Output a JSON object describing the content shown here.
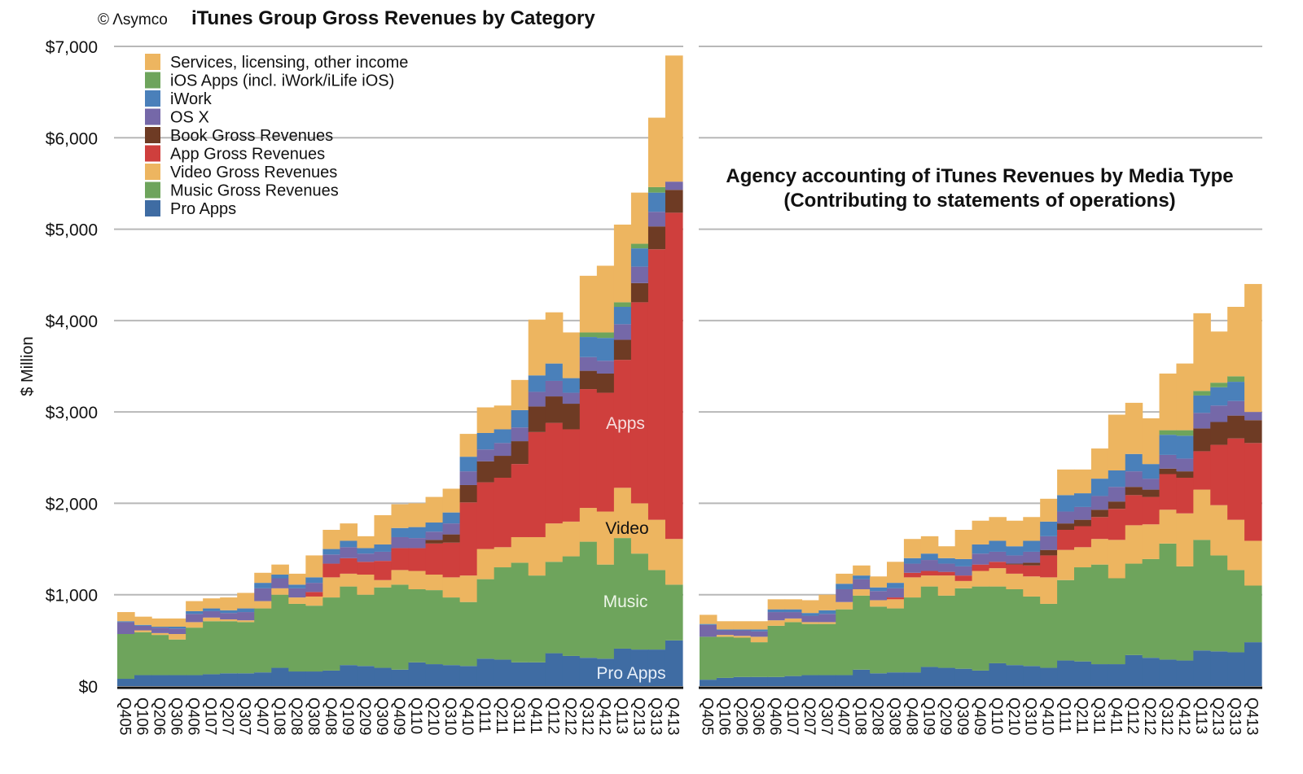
{
  "chart_data": [
    {
      "type": "bar",
      "stacked": true,
      "title": "iTunes Group Gross Revenues by Category",
      "copyright": "© Λsymco",
      "xlabel": "",
      "ylabel": "$ Million",
      "ylim": [
        0,
        7000
      ],
      "yticks": [
        0,
        1000,
        2000,
        3000,
        4000,
        5000,
        6000,
        7000
      ],
      "ytick_labels": [
        "$0",
        "$1,000",
        "$2,000",
        "$3,000",
        "$4,000",
        "$5,000",
        "$6,000",
        "$7,000"
      ],
      "grid": true,
      "legend_position": "top-left",
      "categories": [
        "Q405",
        "Q106",
        "Q206",
        "Q306",
        "Q406",
        "Q107",
        "Q207",
        "Q307",
        "Q407",
        "Q108",
        "Q208",
        "Q308",
        "Q408",
        "Q109",
        "Q209",
        "Q309",
        "Q409",
        "Q110",
        "Q210",
        "Q310",
        "Q410",
        "Q111",
        "Q211",
        "Q311",
        "Q411",
        "Q112",
        "Q212",
        "Q312",
        "Q412",
        "Q113",
        "Q213",
        "Q313",
        "Q413"
      ],
      "annotations": [
        {
          "text": "Apps",
          "series": "App Gross Revenues",
          "color": "#f6dede"
        },
        {
          "text": "Video",
          "series": "Video Gross Revenues",
          "color": "#111111"
        },
        {
          "text": "Music",
          "series": "Music Gross Revenues",
          "color": "#eef6ea"
        },
        {
          "text": "Pro Apps",
          "series": "Pro Apps",
          "color": "#e6eef8"
        }
      ],
      "series": [
        {
          "name": "Pro Apps",
          "color": "#3f6ca3",
          "values": [
            80,
            120,
            120,
            120,
            120,
            130,
            140,
            140,
            150,
            200,
            160,
            160,
            170,
            230,
            220,
            200,
            180,
            260,
            240,
            230,
            220,
            300,
            290,
            260,
            260,
            360,
            330,
            310,
            300,
            410,
            400,
            400,
            500
          ]
        },
        {
          "name": "Music Gross Revenues",
          "color": "#6ea45c",
          "values": [
            490,
            470,
            440,
            390,
            520,
            580,
            570,
            560,
            700,
            800,
            740,
            720,
            800,
            860,
            780,
            880,
            930,
            800,
            810,
            740,
            700,
            870,
            1010,
            1090,
            950,
            1000,
            1090,
            1270,
            1030,
            1210,
            1050,
            870,
            610
          ]
        },
        {
          "name": "Video Gross Revenues",
          "color": "#edb560",
          "values": [
            0,
            20,
            20,
            60,
            60,
            40,
            20,
            20,
            80,
            70,
            70,
            100,
            220,
            140,
            220,
            80,
            160,
            200,
            170,
            220,
            290,
            330,
            220,
            280,
            420,
            420,
            380,
            370,
            580,
            550,
            550,
            550,
            500
          ]
        },
        {
          "name": "App Gross Revenues",
          "color": "#cf3f3d",
          "values": [
            0,
            0,
            0,
            0,
            0,
            0,
            0,
            0,
            0,
            0,
            0,
            50,
            150,
            170,
            140,
            210,
            240,
            250,
            340,
            380,
            800,
            730,
            760,
            800,
            1150,
            1100,
            1010,
            1300,
            1300,
            1400,
            2200,
            2960,
            3570
          ]
        },
        {
          "name": "Book Gross Revenues",
          "color": "#6e3b24",
          "values": [
            0,
            0,
            0,
            0,
            0,
            0,
            0,
            0,
            0,
            0,
            0,
            0,
            0,
            0,
            0,
            0,
            0,
            0,
            40,
            90,
            190,
            230,
            240,
            250,
            280,
            290,
            280,
            200,
            210,
            220,
            210,
            250,
            250
          ]
        },
        {
          "name": "OS X",
          "color": "#7568a8",
          "values": [
            130,
            50,
            60,
            60,
            90,
            70,
            70,
            90,
            140,
            110,
            100,
            100,
            100,
            120,
            90,
            100,
            120,
            110,
            90,
            120,
            150,
            130,
            140,
            150,
            160,
            170,
            120,
            150,
            140,
            170,
            180,
            160,
            90
          ]
        },
        {
          "name": "iWork",
          "color": "#4a80ba",
          "values": [
            10,
            10,
            10,
            20,
            30,
            30,
            30,
            40,
            60,
            40,
            40,
            60,
            60,
            70,
            60,
            80,
            100,
            120,
            100,
            120,
            160,
            180,
            150,
            190,
            180,
            190,
            160,
            220,
            250,
            190,
            200,
            210,
            0
          ]
        },
        {
          "name": "iOS Apps (incl. iWork/iLife iOS)",
          "color": "#6ea45c",
          "values": [
            0,
            0,
            0,
            0,
            0,
            0,
            0,
            0,
            0,
            0,
            0,
            0,
            0,
            0,
            0,
            0,
            0,
            0,
            0,
            0,
            0,
            0,
            0,
            0,
            0,
            0,
            0,
            50,
            60,
            50,
            50,
            60,
            0
          ]
        },
        {
          "name": "Services, licensing, other income",
          "color": "#edb560",
          "values": [
            100,
            90,
            90,
            90,
            110,
            110,
            140,
            170,
            110,
            110,
            120,
            240,
            210,
            190,
            130,
            320,
            260,
            260,
            280,
            260,
            250,
            280,
            260,
            330,
            610,
            560,
            500,
            620,
            730,
            850,
            560,
            760,
            1380
          ]
        }
      ],
      "legend_order": [
        "Services, licensing, other income",
        "iOS Apps (incl. iWork/iLife iOS)",
        "iWork",
        "OS X",
        "Book Gross Revenues",
        "App Gross Revenues",
        "Video Gross Revenues",
        " Music Gross Revenues",
        "Pro Apps"
      ]
    },
    {
      "type": "bar",
      "stacked": true,
      "title": "Agency accounting of iTunes Revenues by Media Type",
      "subtitle": "(Contributing to statements of operations)",
      "xlabel": "",
      "ylabel": "",
      "ylim": [
        0,
        7000
      ],
      "grid": true,
      "categories": [
        "Q405",
        "Q106",
        "Q206",
        "Q306",
        "Q406",
        "Q107",
        "Q207",
        "Q307",
        "Q407",
        "Q108",
        "Q208",
        "Q308",
        "Q408",
        "Q109",
        "Q209",
        "Q309",
        "Q409",
        "Q110",
        "Q210",
        "Q310",
        "Q410",
        "Q111",
        "Q211",
        "Q311",
        "Q411",
        "Q112",
        "Q212",
        "Q312",
        "Q412",
        "Q113",
        "Q213",
        "Q313",
        "Q413"
      ],
      "series": [
        {
          "name": "Pro Apps",
          "color": "#3f6ca3",
          "values": [
            70,
            90,
            100,
            100,
            100,
            110,
            120,
            120,
            120,
            180,
            140,
            150,
            150,
            210,
            200,
            190,
            170,
            250,
            230,
            220,
            200,
            280,
            270,
            240,
            240,
            340,
            310,
            290,
            280,
            390,
            380,
            370,
            480
          ]
        },
        {
          "name": "Music Gross Revenues",
          "color": "#6ea45c",
          "values": [
            470,
            450,
            430,
            380,
            560,
            590,
            560,
            560,
            720,
            810,
            730,
            700,
            820,
            880,
            790,
            880,
            920,
            840,
            830,
            760,
            700,
            880,
            1030,
            1090,
            940,
            1000,
            1080,
            1270,
            1030,
            1210,
            1050,
            900,
            620
          ]
        },
        {
          "name": "Video Gross Revenues",
          "color": "#edb560",
          "values": [
            0,
            20,
            20,
            60,
            60,
            40,
            20,
            20,
            80,
            70,
            70,
            100,
            220,
            120,
            220,
            80,
            170,
            200,
            170,
            220,
            290,
            330,
            220,
            280,
            420,
            420,
            380,
            370,
            580,
            550,
            550,
            550,
            490
          ]
        },
        {
          "name": "App Gross Revenues",
          "color": "#cf3f3d",
          "values": [
            0,
            0,
            0,
            0,
            0,
            0,
            0,
            0,
            0,
            0,
            0,
            20,
            50,
            50,
            40,
            60,
            70,
            70,
            100,
            120,
            240,
            220,
            230,
            240,
            340,
            330,
            300,
            390,
            390,
            420,
            660,
            890,
            1070
          ]
        },
        {
          "name": "Book Gross Revenues",
          "color": "#6e3b24",
          "values": [
            0,
            0,
            0,
            0,
            0,
            0,
            0,
            0,
            0,
            0,
            0,
            0,
            0,
            0,
            0,
            0,
            0,
            0,
            10,
            30,
            60,
            70,
            70,
            80,
            80,
            90,
            80,
            60,
            70,
            250,
            250,
            250,
            250
          ]
        },
        {
          "name": "OS X",
          "color": "#7568a8",
          "values": [
            130,
            50,
            60,
            60,
            90,
            70,
            70,
            90,
            140,
            110,
            100,
            100,
            100,
            120,
            90,
            100,
            120,
            110,
            90,
            120,
            150,
            130,
            140,
            150,
            160,
            170,
            120,
            150,
            140,
            170,
            180,
            160,
            90
          ]
        },
        {
          "name": "iWork",
          "color": "#4a80ba",
          "values": [
            10,
            10,
            10,
            20,
            30,
            30,
            30,
            40,
            60,
            40,
            40,
            60,
            60,
            70,
            60,
            80,
            100,
            120,
            100,
            120,
            160,
            180,
            150,
            190,
            180,
            190,
            160,
            220,
            250,
            190,
            200,
            210,
            0
          ]
        },
        {
          "name": "iOS Apps (incl. iWork/iLife iOS)",
          "color": "#6ea45c",
          "values": [
            0,
            0,
            0,
            0,
            0,
            0,
            0,
            0,
            0,
            0,
            0,
            0,
            0,
            0,
            0,
            0,
            0,
            0,
            0,
            0,
            0,
            0,
            0,
            0,
            0,
            0,
            0,
            50,
            60,
            50,
            50,
            60,
            0
          ]
        },
        {
          "name": "Services, licensing, other income",
          "color": "#edb560",
          "values": [
            100,
            90,
            90,
            90,
            110,
            110,
            140,
            170,
            110,
            110,
            120,
            230,
            210,
            190,
            130,
            320,
            260,
            260,
            280,
            260,
            250,
            280,
            260,
            330,
            610,
            560,
            500,
            620,
            730,
            850,
            560,
            760,
            1400
          ]
        }
      ]
    }
  ]
}
